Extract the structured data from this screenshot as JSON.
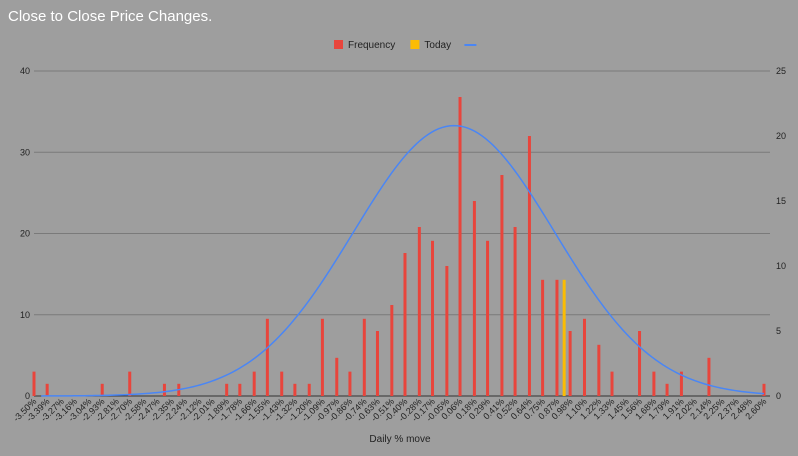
{
  "title": "Close to Close Price Changes.",
  "chart_data": {
    "type": "bar",
    "title": "Close to Close Price Changes.",
    "xlabel": "Daily % move",
    "ylabel": "",
    "ylim": [
      0,
      40
    ],
    "y_ticks": [
      0,
      10,
      20,
      30,
      40
    ],
    "y2lim": [
      0,
      25
    ],
    "y2_ticks": [
      0,
      5,
      10,
      15,
      20,
      25
    ],
    "grid": true,
    "legend_position": "top-center",
    "x_bins": [
      -3.5,
      -3.44,
      -3.39,
      -3.33,
      -3.27,
      -3.21,
      -3.16,
      -3.1,
      -3.04,
      -2.98,
      -2.93,
      -2.87,
      -2.81,
      -2.75,
      -2.7,
      -2.64,
      -2.58,
      -2.52,
      -2.47,
      -2.41,
      -2.35,
      -2.29,
      -2.24,
      -2.18,
      -2.12,
      -2.06,
      -2.01,
      -1.95,
      -1.89,
      -1.83,
      -1.78,
      -1.72,
      -1.66,
      -1.6,
      -1.55,
      -1.49,
      -1.43,
      -1.37,
      -1.32,
      -1.26,
      -1.2,
      -1.14,
      -1.09,
      -1.03,
      -0.97,
      -0.91,
      -0.86,
      -0.8,
      -0.74,
      -0.68,
      -0.63,
      -0.57,
      -0.51,
      -0.45,
      -0.4,
      -0.34,
      -0.28,
      -0.22,
      -0.17,
      -0.11,
      -0.05,
      0.01,
      0.06,
      0.12,
      0.18,
      0.24,
      0.29,
      0.35,
      0.41,
      0.47,
      0.52,
      0.58,
      0.64,
      0.7,
      0.75,
      0.81,
      0.87,
      0.93,
      0.98,
      1.04,
      1.1,
      1.16,
      1.22,
      1.27,
      1.33,
      1.39,
      1.45,
      1.5,
      1.56,
      1.62,
      1.68,
      1.73,
      1.79,
      1.85,
      1.91,
      1.96,
      2.02,
      2.08,
      2.14,
      2.19,
      2.25,
      2.31,
      2.37,
      2.42,
      2.48,
      2.54,
      2.6
    ],
    "x_tick_labels": [
      "-3.50%",
      "-3.39%",
      "-3.27%",
      "-3.16%",
      "-3.04%",
      "-2.93%",
      "-2.81%",
      "-2.70%",
      "-2.58%",
      "-2.47%",
      "-2.35%",
      "-2.24%",
      "-2.12%",
      "-2.01%",
      "-1.89%",
      "-1.78%",
      "-1.66%",
      "-1.55%",
      "-1.43%",
      "-1.32%",
      "-1.20%",
      "-1.09%",
      "-0.97%",
      "-0.86%",
      "-0.74%",
      "-0.63%",
      "-0.51%",
      "-0.40%",
      "-0.28%",
      "-0.17%",
      "-0.05%",
      "0.06%",
      "0.18%",
      "0.29%",
      "0.41%",
      "0.52%",
      "0.64%",
      "0.75%",
      "0.87%",
      "0.98%",
      "1.10%",
      "1.22%",
      "1.33%",
      "1.45%",
      "1.56%",
      "1.68%",
      "1.79%",
      "1.91%",
      "2.02%",
      "2.14%",
      "2.25%",
      "2.37%",
      "2.48%",
      "2.60%"
    ],
    "series": [
      {
        "name": "Frequency",
        "type": "bar",
        "color": "#e8453c",
        "points": [
          [
            -3.5,
            3
          ],
          [
            -3.39,
            1.5
          ],
          [
            -2.93,
            1.5
          ],
          [
            -2.7,
            3
          ],
          [
            -2.41,
            1.5
          ],
          [
            -2.29,
            1.5
          ],
          [
            -1.89,
            1.5
          ],
          [
            -1.78,
            1.5
          ],
          [
            -1.66,
            3
          ],
          [
            -1.55,
            9.5
          ],
          [
            -1.43,
            3
          ],
          [
            -1.32,
            1.5
          ],
          [
            -1.2,
            1.5
          ],
          [
            -1.09,
            9.5
          ],
          [
            -0.97,
            4.7
          ],
          [
            -0.86,
            3
          ],
          [
            -0.74,
            9.5
          ],
          [
            -0.63,
            8
          ],
          [
            -0.51,
            11.2
          ],
          [
            -0.4,
            17.6
          ],
          [
            -0.28,
            20.8
          ],
          [
            -0.17,
            19.1
          ],
          [
            -0.05,
            16
          ],
          [
            0.06,
            36.8
          ],
          [
            0.18,
            24
          ],
          [
            0.29,
            19.1
          ],
          [
            0.41,
            27.2
          ],
          [
            0.52,
            20.8
          ],
          [
            0.64,
            32
          ],
          [
            0.75,
            14.3
          ],
          [
            0.87,
            14.3
          ],
          [
            0.98,
            8
          ],
          [
            1.1,
            9.5
          ],
          [
            1.22,
            6.3
          ],
          [
            1.33,
            3
          ],
          [
            1.56,
            8
          ],
          [
            1.68,
            3
          ],
          [
            1.79,
            1.5
          ],
          [
            1.91,
            3
          ],
          [
            2.14,
            4.7
          ],
          [
            2.6,
            1.5
          ]
        ]
      },
      {
        "name": "Today",
        "type": "bar",
        "color": "#fbbc04",
        "points": [
          [
            0.93,
            14.3
          ]
        ]
      },
      {
        "name": "",
        "type": "line",
        "axis": "right",
        "color": "#4a86f5",
        "mean": 0.01,
        "sd": 0.84,
        "peak": 20.8,
        "x_range": [
          -3.44,
          2.6
        ]
      }
    ]
  }
}
